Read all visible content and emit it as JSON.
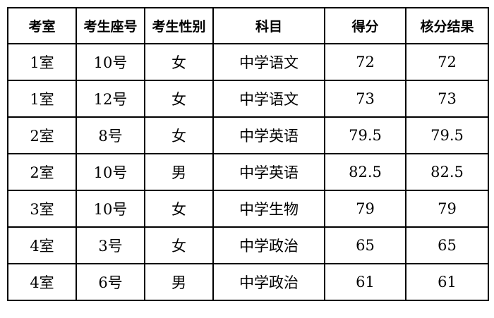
{
  "table": {
    "headers": [
      "考室",
      "考生座号",
      "考生性别",
      "科目",
      "得分",
      "核分结果"
    ],
    "rows": [
      [
        "1室",
        "10号",
        "女",
        "中学语文",
        "72",
        "72"
      ],
      [
        "1室",
        "12号",
        "女",
        "中学语文",
        "73",
        "73"
      ],
      [
        "2室",
        "8号",
        "女",
        "中学英语",
        "79.5",
        "79.5"
      ],
      [
        "2室",
        "10号",
        "男",
        "中学英语",
        "82.5",
        "82.5"
      ],
      [
        "3室",
        "10号",
        "女",
        "中学生物",
        "79",
        "79"
      ],
      [
        "4室",
        "3号",
        "女",
        "中学政治",
        "65",
        "65"
      ],
      [
        "4室",
        "6号",
        "男",
        "中学政治",
        "61",
        "61"
      ]
    ]
  }
}
